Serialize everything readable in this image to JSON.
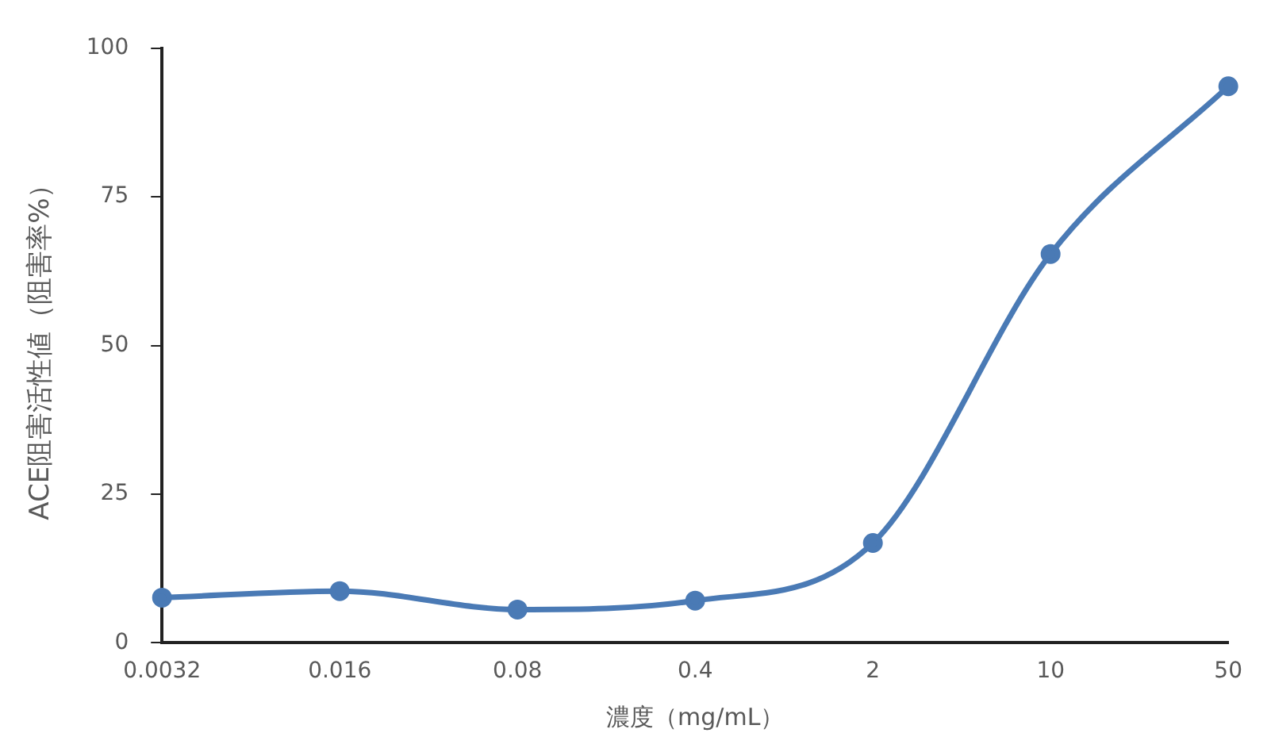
{
  "chart_data": {
    "type": "line",
    "xlabel": "濃度（mg/mL）",
    "ylabel": "ACE阻害活性値（阻害率%）",
    "categories": [
      "0.0032",
      "0.016",
      "0.08",
      "0.4",
      "2",
      "10",
      "50"
    ],
    "series": [
      {
        "color": "#4a7ab5",
        "values": [
          7.6,
          8.7,
          5.6,
          7.1,
          16.8,
          65.4,
          93.6
        ]
      }
    ],
    "ylim": [
      0,
      100
    ],
    "yticks": [
      0,
      25,
      50,
      75,
      100
    ],
    "grid": false,
    "legend": false,
    "marker": "circle",
    "line_style": "solid"
  }
}
